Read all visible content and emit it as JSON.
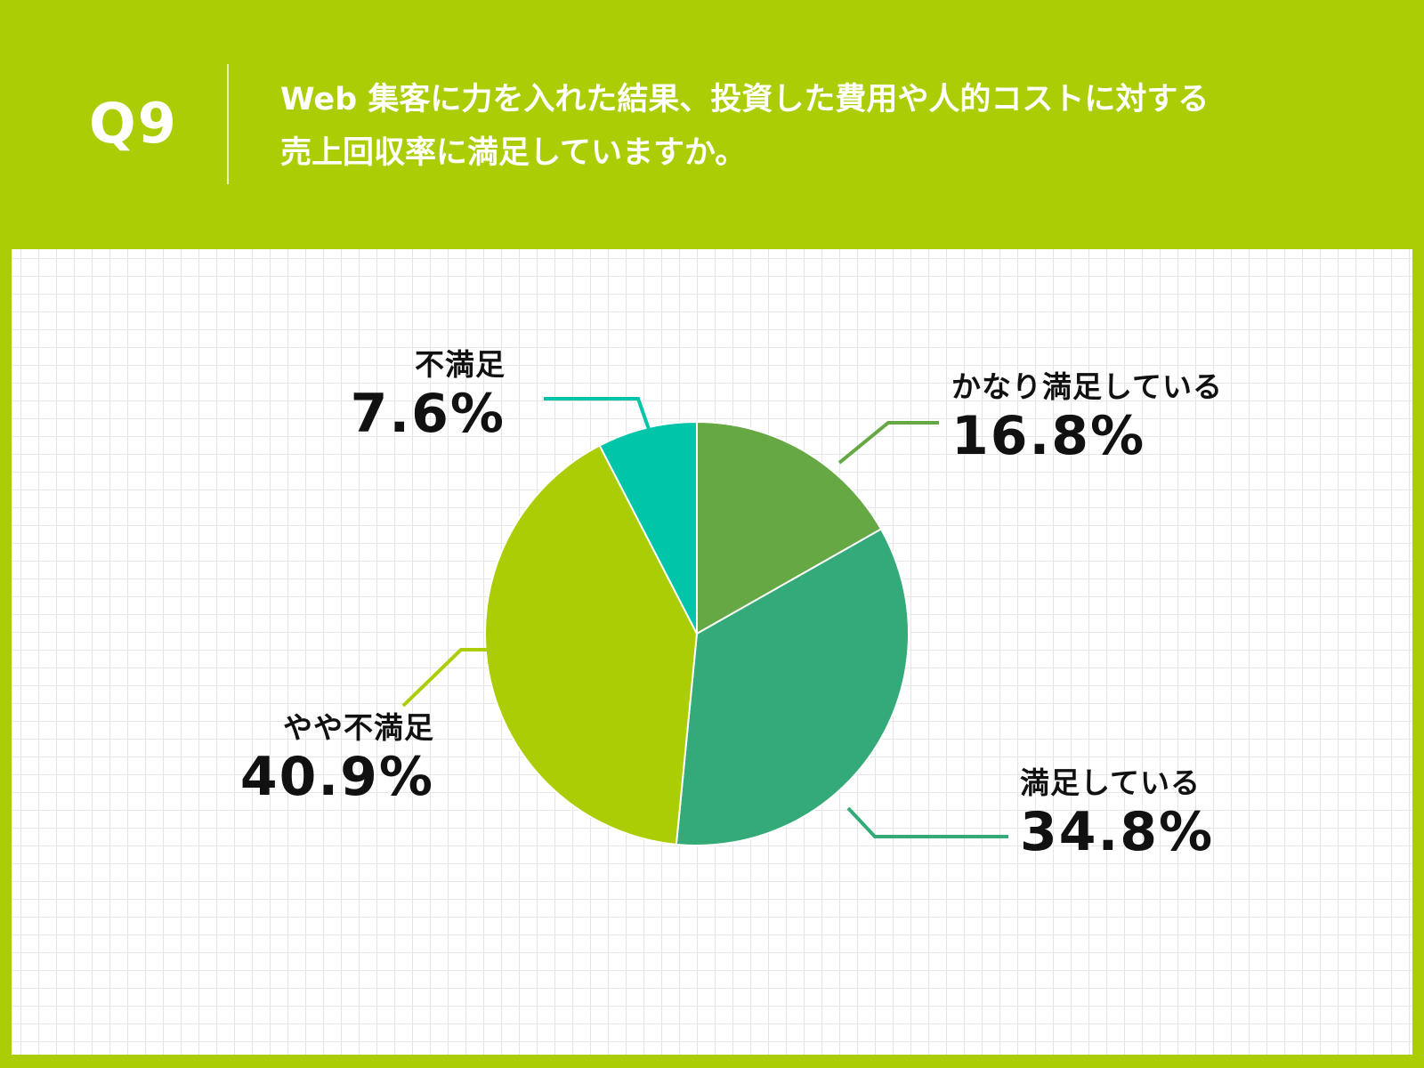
{
  "header": {
    "q_number": "Q9",
    "question_line1": "Web 集客に力を入れた結果、投資した費用や人的コストに対する",
    "question_line2": "売上回収率に満足していますか。"
  },
  "chart_data": {
    "type": "pie",
    "categories": [
      "かなり満足している",
      "満足している",
      "やや不満足",
      "不満足"
    ],
    "values": [
      16.8,
      34.8,
      40.9,
      7.6
    ],
    "value_labels": [
      "16.8%",
      "34.8%",
      "40.9%",
      "7.6%"
    ],
    "colors": [
      "#66a843",
      "#33aa77",
      "#aacd06",
      "#00c5a8"
    ],
    "start_angle": "12 o'clock",
    "direction": "clockwise",
    "grid": true
  }
}
